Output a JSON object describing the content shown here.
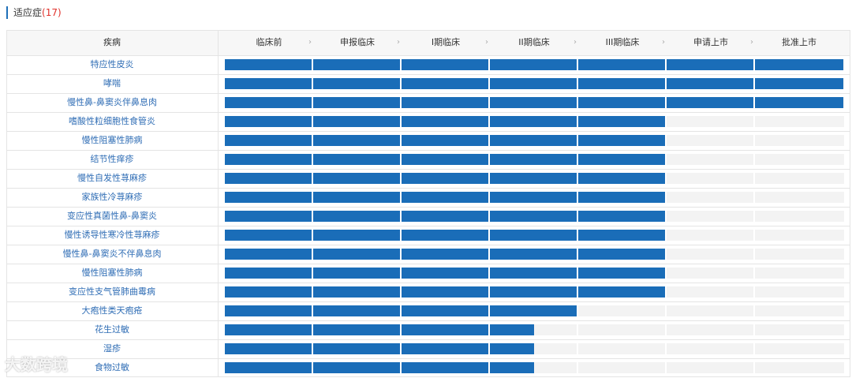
{
  "header": {
    "title": "适应症",
    "count": "(17)"
  },
  "table": {
    "first_column": "疾病",
    "stages": [
      "临床前",
      "申报临床",
      "I期临床",
      "II期临床",
      "III期临床",
      "申请上市",
      "批准上市"
    ],
    "rows": [
      {
        "name": "特应性皮炎",
        "progress": 7
      },
      {
        "name": "哮喘",
        "progress": 7
      },
      {
        "name": "慢性鼻-鼻窦炎伴鼻息肉",
        "progress": 7
      },
      {
        "name": "嗜酸性粒细胞性食管炎",
        "progress": 5
      },
      {
        "name": "慢性阻塞性肺病",
        "progress": 5
      },
      {
        "name": "结节性痒疹",
        "progress": 5
      },
      {
        "name": "慢性自发性荨麻疹",
        "progress": 5
      },
      {
        "name": "家族性冷荨麻疹",
        "progress": 5
      },
      {
        "name": "变应性真菌性鼻-鼻窦炎",
        "progress": 5
      },
      {
        "name": "慢性诱导性寒冷性荨麻疹",
        "progress": 5
      },
      {
        "name": "慢性鼻-鼻窦炎不伴鼻息肉",
        "progress": 5
      },
      {
        "name": "慢性阻塞性肺病",
        "progress": 5
      },
      {
        "name": "变应性支气管肺曲霉病",
        "progress": 5
      },
      {
        "name": "大疱性类天疱疮",
        "progress": 4
      },
      {
        "name": "花生过敏",
        "progress": 3.5
      },
      {
        "name": "湿疹",
        "progress": 3.5
      },
      {
        "name": "食物过敏",
        "progress": 3.5
      }
    ]
  },
  "watermark": "大数跨境"
}
